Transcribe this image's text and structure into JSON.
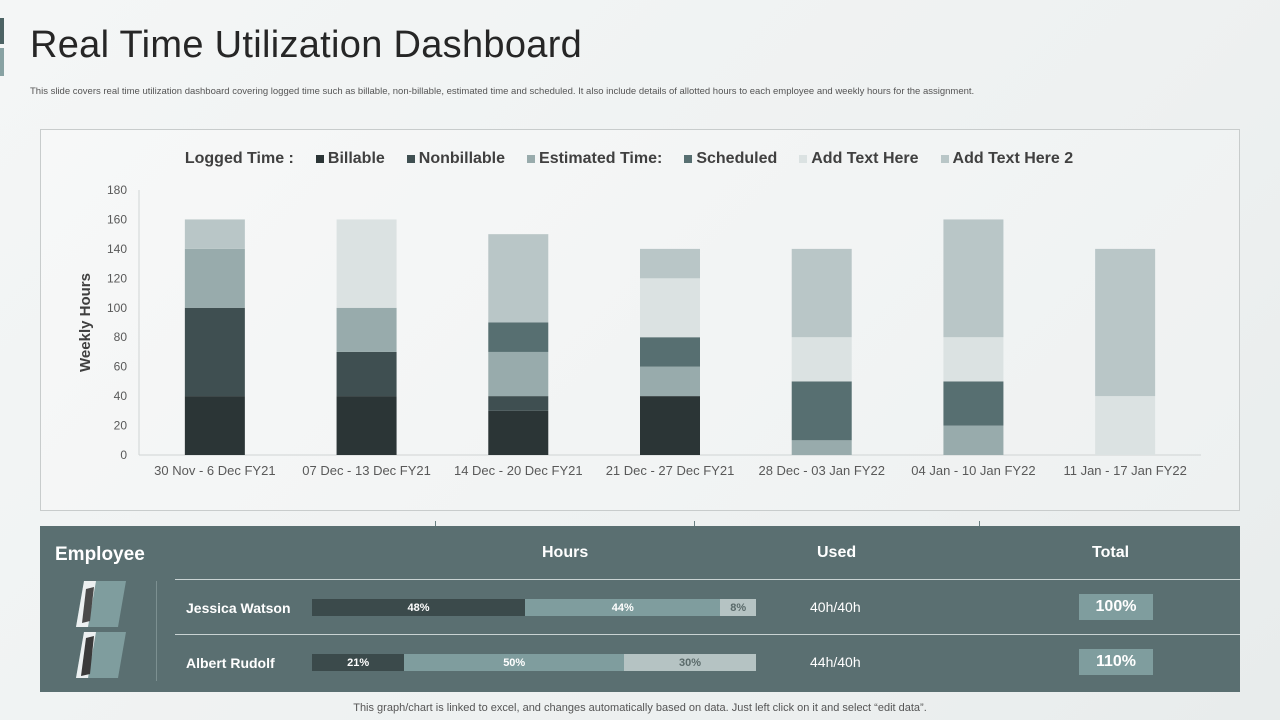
{
  "header": {
    "title": "Real Time Utilization Dashboard",
    "subtitle": "This slide covers real time utilization dashboard covering logged time such as billable, non-billable, estimated time and scheduled. It also include details of allotted hours to each employee and weekly hours for the assignment."
  },
  "chart_data": {
    "type": "bar",
    "stacked": true,
    "title": "",
    "xlabel": "",
    "ylabel": "Weekly Hours",
    "ylim": [
      0,
      180
    ],
    "yticks": [
      0,
      20,
      40,
      60,
      80,
      100,
      120,
      140,
      160,
      180
    ],
    "legend_title": "Logged Time :",
    "legend_position": "top",
    "categories": [
      "30 Nov - 6 Dec FY21",
      "07 Dec - 13 Dec FY21",
      "14 Dec - 20 Dec FY21",
      "21 Dec - 27 Dec FY21",
      "28 Dec - 03 Jan FY22",
      "04 Jan - 10  Jan FY22",
      "11 Jan - 17 Jan FY22"
    ],
    "series": [
      {
        "name": "Billable",
        "color": "#2b3536",
        "values": [
          40,
          40,
          30,
          40,
          0,
          0,
          0
        ]
      },
      {
        "name": "Nonbillable",
        "color": "#3f4f51",
        "values": [
          60,
          30,
          10,
          0,
          0,
          0,
          0
        ]
      },
      {
        "name": "Estimated Time:",
        "color": "#98abac",
        "values": [
          40,
          30,
          30,
          20,
          10,
          20,
          0
        ]
      },
      {
        "name": "Scheduled",
        "color": "#576f71",
        "values": [
          0,
          0,
          20,
          20,
          40,
          30,
          0
        ]
      },
      {
        "name": "Add Text Here",
        "color": "#dbe2e2",
        "values": [
          0,
          60,
          0,
          40,
          30,
          30,
          40
        ]
      },
      {
        "name": "Add Text Here 2",
        "color": "#b9c6c7",
        "values": [
          20,
          0,
          60,
          20,
          60,
          80,
          100
        ]
      }
    ]
  },
  "table": {
    "title": "Employee",
    "headers": {
      "hours": "Hours",
      "used": "Used",
      "total": "Total"
    },
    "rows": [
      {
        "name": "Jessica Watson",
        "segments": [
          {
            "label": "48%",
            "value": 48
          },
          {
            "label": "44%",
            "value": 44
          },
          {
            "label": "8%",
            "value": 8
          }
        ],
        "used": "40h/40h",
        "total": "100%"
      },
      {
        "name": "Albert Rudolf",
        "segments": [
          {
            "label": "21%",
            "value": 21
          },
          {
            "label": "50%",
            "value": 50
          },
          {
            "label": "30%",
            "value": 30
          }
        ],
        "used": "44h/40h",
        "total": "110%"
      }
    ],
    "segment_colors": [
      "#3b4a4b",
      "#7f9d9e",
      "#b5c3c3"
    ],
    "segment_text_colors": [
      "#ffffff",
      "#ffffff",
      "#5a6a6a"
    ]
  },
  "footer": {
    "note": "This graph/chart is linked to excel, and changes automatically based on data. Just left click on it and select “edit data”."
  }
}
